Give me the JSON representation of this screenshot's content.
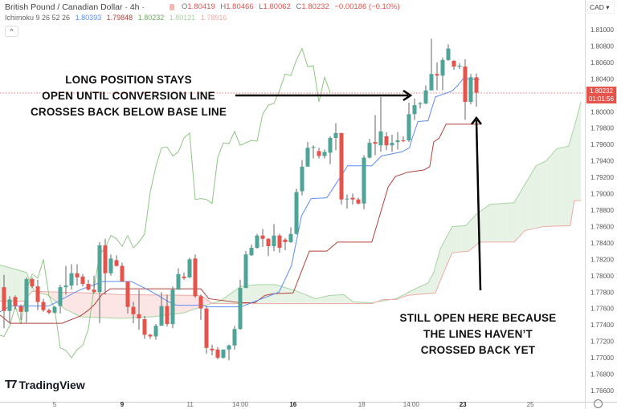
{
  "header": {
    "symbol": "British Pound / Canadian Dollar · 4h ·",
    "open_label": "O",
    "open": "1.80419",
    "high_label": "H",
    "high": "1.80466",
    "low_label": "L",
    "low": "1.80062",
    "close_label": "C",
    "close": "1.80232",
    "change": "−0.00186 (−0.10%)",
    "collapse_icon": "^"
  },
  "indicator": {
    "name": "Ichimoku 9 26 52 26",
    "conversion": "1.80393",
    "base": "1.79848",
    "lagging": "1.80232",
    "lead_a": "1.80121",
    "lead_b": "1.78916"
  },
  "currency": "CAD ▾",
  "price_axis": [
    "1.81000",
    "1.80800",
    "1.80600",
    "1.80400",
    "1.80000",
    "1.79800",
    "1.79600",
    "1.79400",
    "1.79200",
    "1.79000",
    "1.78800",
    "1.78600",
    "1.78400",
    "1.78200",
    "1.78000",
    "1.77800",
    "1.77600",
    "1.77400",
    "1.77200",
    "1.77000",
    "1.76800",
    "1.76600"
  ],
  "last_price": {
    "value": "1.80232",
    "countdown": "01:01:56"
  },
  "time_axis": [
    {
      "label": "5",
      "bar": 9,
      "bold": false
    },
    {
      "label": "9",
      "bar": 21,
      "bold": true
    },
    {
      "label": "11",
      "bar": 33.1,
      "bold": false
    },
    {
      "label": "14:00",
      "bar": 42,
      "bold": false
    },
    {
      "label": "16",
      "bar": 51.4,
      "bold": true
    },
    {
      "label": "18",
      "bar": 63.6,
      "bold": false
    },
    {
      "label": "14:00",
      "bar": 72.4,
      "bold": false
    },
    {
      "label": "23",
      "bar": 81.6,
      "bold": true
    },
    {
      "label": "25",
      "bar": 93.6,
      "bold": false
    }
  ],
  "annotations": {
    "left": [
      "LONG POSITION STAYS",
      "OPEN UNTIL CONVERSION LINE",
      "CROSSES BACK BELOW BASE LINE"
    ],
    "right": [
      "STILL OPEN HERE BECAUSE",
      "THE LINES HAVEN’T",
      "CROSSED BACK YET"
    ]
  },
  "logo": "TradingView",
  "colors": {
    "up": "#4ea597",
    "down": "#e5534b",
    "conversion": "#5b8cf5",
    "base": "#b5403a",
    "lagging": "#8fc585",
    "lead_a": "#a5d4a0",
    "lead_b": "#f0aaa6",
    "cloud_up": "#e6f2e4",
    "cloud_down": "#fbe4e3"
  },
  "chart_data": {
    "type": "candlestick",
    "ohlc_order": [
      "open",
      "high",
      "low",
      "close"
    ],
    "ylim": [
      1.7655,
      1.8115
    ],
    "candles": [
      [
        1.7786,
        1.7801,
        1.7736,
        1.7757
      ],
      [
        1.7757,
        1.7775,
        1.7743,
        1.7771
      ],
      [
        1.7774,
        1.7776,
        1.7759,
        1.7763
      ],
      [
        1.7763,
        1.7765,
        1.7746,
        1.7756
      ],
      [
        1.7756,
        1.7798,
        1.7743,
        1.7796
      ],
      [
        1.7796,
        1.7798,
        1.7785,
        1.7787
      ],
      [
        1.7787,
        1.7795,
        1.7758,
        1.7768
      ],
      [
        1.7768,
        1.7772,
        1.7756,
        1.7758
      ],
      [
        1.7758,
        1.776,
        1.7753,
        1.7755
      ],
      [
        1.7755,
        1.7763,
        1.7754,
        1.7762
      ],
      [
        1.7763,
        1.7789,
        1.7754,
        1.7786
      ],
      [
        1.7786,
        1.7812,
        1.7777,
        1.7788
      ],
      [
        1.7788,
        1.7814,
        1.7783,
        1.7803
      ],
      [
        1.7803,
        1.7814,
        1.7788,
        1.7798
      ],
      [
        1.7799,
        1.7802,
        1.7787,
        1.779
      ],
      [
        1.779,
        1.7795,
        1.7782,
        1.7783
      ],
      [
        1.7783,
        1.78,
        1.7778,
        1.778
      ],
      [
        1.778,
        1.7841,
        1.7742,
        1.7837
      ],
      [
        1.7837,
        1.7845,
        1.7777,
        1.7803
      ],
      [
        1.7803,
        1.7826,
        1.78,
        1.7821
      ],
      [
        1.7819,
        1.7825,
        1.7811,
        1.7812
      ],
      [
        1.7812,
        1.7816,
        1.7793,
        1.7793
      ],
      [
        1.7793,
        1.7793,
        1.7754,
        1.7762
      ],
      [
        1.7762,
        1.7768,
        1.7742,
        1.7753
      ],
      [
        1.7753,
        1.7783,
        1.7734,
        1.7748
      ],
      [
        1.7747,
        1.7751,
        1.7723,
        1.7728
      ],
      [
        1.7728,
        1.7729,
        1.7723,
        1.7726
      ],
      [
        1.7726,
        1.7741,
        1.7722,
        1.7739
      ],
      [
        1.7739,
        1.778,
        1.7739,
        1.7763
      ],
      [
        1.7763,
        1.7777,
        1.7738,
        1.7741
      ],
      [
        1.7741,
        1.7787,
        1.7736,
        1.7783
      ],
      [
        1.7783,
        1.7809,
        1.7783,
        1.7802
      ],
      [
        1.7799,
        1.7804,
        1.7795,
        1.7797
      ],
      [
        1.7798,
        1.7822,
        1.7797,
        1.782
      ],
      [
        1.7821,
        1.7826,
        1.7773,
        1.7775
      ],
      [
        1.7775,
        1.7777,
        1.7746,
        1.776
      ],
      [
        1.776,
        1.7763,
        1.7705,
        1.7712
      ],
      [
        1.7711,
        1.7716,
        1.7703,
        1.7709
      ],
      [
        1.771,
        1.7713,
        1.7698,
        1.77
      ],
      [
        1.77,
        1.771,
        1.7699,
        1.771
      ],
      [
        1.771,
        1.7716,
        1.7697,
        1.7715
      ],
      [
        1.7715,
        1.7739,
        1.771,
        1.7735
      ],
      [
        1.7735,
        1.7795,
        1.7734,
        1.7785
      ],
      [
        1.7785,
        1.783,
        1.7785,
        1.7826
      ],
      [
        1.7825,
        1.7838,
        1.7824,
        1.7834
      ],
      [
        1.7834,
        1.7851,
        1.7833,
        1.7849
      ],
      [
        1.7849,
        1.7857,
        1.7835,
        1.7845
      ],
      [
        1.7845,
        1.7846,
        1.7824,
        1.7836
      ],
      [
        1.7836,
        1.7863,
        1.783,
        1.7849
      ],
      [
        1.7849,
        1.7851,
        1.7828,
        1.7834
      ],
      [
        1.7844,
        1.7846,
        1.7831,
        1.7841
      ],
      [
        1.7841,
        1.7859,
        1.784,
        1.7851
      ],
      [
        1.7851,
        1.7906,
        1.785,
        1.7902
      ],
      [
        1.7903,
        1.7941,
        1.7898,
        1.7933
      ],
      [
        1.7933,
        1.7963,
        1.7933,
        1.7956
      ],
      [
        1.7956,
        1.7959,
        1.7943,
        1.7957
      ],
      [
        1.7952,
        1.7956,
        1.7943,
        1.7946
      ],
      [
        1.7946,
        1.7954,
        1.7943,
        1.7951
      ],
      [
        1.795,
        1.797,
        1.7936,
        1.7968
      ],
      [
        1.7968,
        1.7986,
        1.7953,
        1.7974
      ],
      [
        1.7974,
        1.7974,
        1.7887,
        1.7893
      ],
      [
        1.7893,
        1.7899,
        1.7882,
        1.7894
      ],
      [
        1.7895,
        1.79,
        1.7887,
        1.7893
      ],
      [
        1.7893,
        1.7895,
        1.7887,
        1.7888
      ],
      [
        1.7888,
        1.7947,
        1.7881,
        1.7944
      ],
      [
        1.7944,
        1.7967,
        1.7943,
        1.7962
      ],
      [
        1.7963,
        1.7996,
        1.7947,
        1.7961
      ],
      [
        1.7959,
        1.8018,
        1.7951,
        1.7976
      ],
      [
        1.797,
        1.7975,
        1.7953,
        1.7959
      ],
      [
        1.7959,
        1.7972,
        1.7951,
        1.7962
      ],
      [
        1.7963,
        1.7975,
        1.7954,
        1.7965
      ],
      [
        1.7965,
        1.797,
        1.7963,
        1.7964
      ],
      [
        1.7965,
        1.8011,
        1.7963,
        1.7997
      ],
      [
        1.7997,
        1.8016,
        1.799,
        1.8008
      ],
      [
        1.8009,
        1.8012,
        1.8004,
        1.801
      ],
      [
        1.801,
        1.8032,
        1.8009,
        1.8026
      ],
      [
        1.8026,
        1.8089,
        1.8026,
        1.8046
      ],
      [
        1.8046,
        1.806,
        1.8026,
        1.8044
      ],
      [
        1.8044,
        1.8066,
        1.8026,
        1.8063
      ],
      [
        1.8063,
        1.8082,
        1.8062,
        1.8077
      ],
      [
        1.8062,
        1.8063,
        1.8051,
        1.8055
      ],
      [
        1.8055,
        1.8059,
        1.8052,
        1.8056
      ],
      [
        1.8055,
        1.8064,
        1.799,
        1.8012
      ],
      [
        1.8012,
        1.8046,
        1.8009,
        1.8042
      ],
      [
        1.80419,
        1.80466,
        1.80062,
        1.80232
      ]
    ],
    "lagging_shift": 26,
    "conversion_line": [
      [
        -0.7,
        1.7756
      ],
      [
        1.1,
        1.7763
      ],
      [
        7.9,
        1.7763
      ],
      [
        10,
        1.777
      ],
      [
        12.4,
        1.7779
      ],
      [
        13.6,
        1.7783
      ],
      [
        17.6,
        1.7793
      ],
      [
        22.6,
        1.7793
      ],
      [
        25,
        1.7785
      ],
      [
        26.9,
        1.7778
      ],
      [
        29.3,
        1.7768
      ],
      [
        30.7,
        1.7764
      ],
      [
        35.4,
        1.7764
      ],
      [
        36.1,
        1.7762
      ],
      [
        42.1,
        1.7762
      ],
      [
        48.9,
        1.778
      ],
      [
        51.1,
        1.7812
      ],
      [
        52.9,
        1.7873
      ],
      [
        54.6,
        1.7894
      ],
      [
        57.4,
        1.7895
      ],
      [
        59.3,
        1.7915
      ],
      [
        61.1,
        1.7934
      ],
      [
        65.4,
        1.7934
      ],
      [
        67.1,
        1.7946
      ],
      [
        70.7,
        1.7951
      ],
      [
        72.1,
        1.7956
      ],
      [
        72.6,
        1.7968
      ],
      [
        73.6,
        1.7988
      ],
      [
        75.4,
        1.7989
      ],
      [
        76.7,
        1.8018
      ],
      [
        79.6,
        1.8025
      ],
      [
        80.7,
        1.8032
      ],
      [
        81.6,
        1.804
      ],
      [
        84.6,
        1.80393
      ]
    ],
    "base_line": [
      [
        -0.7,
        1.7752
      ],
      [
        1.1,
        1.7742
      ],
      [
        10.3,
        1.7742
      ],
      [
        13.6,
        1.7751
      ],
      [
        15,
        1.7758
      ],
      [
        16.1,
        1.7765
      ],
      [
        17.4,
        1.7777
      ],
      [
        18.9,
        1.7784
      ],
      [
        35,
        1.7784
      ],
      [
        36.4,
        1.7772
      ],
      [
        42.1,
        1.7767
      ],
      [
        44.6,
        1.7767
      ],
      [
        46.4,
        1.7776
      ],
      [
        47.9,
        1.7778
      ],
      [
        51.4,
        1.7779
      ],
      [
        54.3,
        1.783
      ],
      [
        57.4,
        1.783
      ],
      [
        59.3,
        1.7841
      ],
      [
        65.4,
        1.7841
      ],
      [
        68.3,
        1.7908
      ],
      [
        69.6,
        1.7921
      ],
      [
        71.7,
        1.7926
      ],
      [
        74.7,
        1.7929
      ],
      [
        75.7,
        1.7933
      ],
      [
        76.4,
        1.7963
      ],
      [
        77.4,
        1.7968
      ],
      [
        78.6,
        1.79848
      ],
      [
        84.6,
        1.79848
      ]
    ],
    "leading_span_a": [
      [
        -0.7,
        1.7813
      ],
      [
        4,
        1.7804
      ],
      [
        5.4,
        1.7781
      ],
      [
        7.9,
        1.7776
      ],
      [
        10.7,
        1.776
      ],
      [
        13.6,
        1.775
      ],
      [
        20.7,
        1.7748
      ],
      [
        26.4,
        1.775
      ],
      [
        32.1,
        1.7755
      ],
      [
        35,
        1.7762
      ],
      [
        38.6,
        1.777
      ],
      [
        42.1,
        1.7787
      ],
      [
        45,
        1.7789
      ],
      [
        48.3,
        1.7789
      ],
      [
        51.7,
        1.7782
      ],
      [
        53.6,
        1.7777
      ],
      [
        55.4,
        1.7772
      ],
      [
        57.9,
        1.7776
      ],
      [
        60.4,
        1.7777
      ],
      [
        62.1,
        1.7768
      ],
      [
        65.4,
        1.7767
      ],
      [
        69.7,
        1.7772
      ],
      [
        73.1,
        1.7784
      ],
      [
        75.4,
        1.7791
      ],
      [
        76.4,
        1.7804
      ],
      [
        77.6,
        1.7833
      ],
      [
        79.7,
        1.786
      ],
      [
        82.1,
        1.7861
      ],
      [
        84,
        1.7875
      ],
      [
        86.4,
        1.7887
      ],
      [
        90.7,
        1.7889
      ],
      [
        92.6,
        1.7911
      ],
      [
        94.6,
        1.7934
      ],
      [
        96.4,
        1.794
      ],
      [
        98.3,
        1.7955
      ],
      [
        100.4,
        1.7958
      ],
      [
        101.7,
        1.7989
      ],
      [
        102.6,
        1.80121
      ]
    ],
    "leading_span_b": [
      [
        -0.7,
        1.7769
      ],
      [
        3.6,
        1.7769
      ],
      [
        5,
        1.7781
      ],
      [
        15,
        1.7779
      ],
      [
        20.7,
        1.7777
      ],
      [
        35,
        1.7776
      ],
      [
        37.1,
        1.7766
      ],
      [
        65.4,
        1.7766
      ],
      [
        67.4,
        1.7771
      ],
      [
        69.7,
        1.7771
      ],
      [
        71.7,
        1.7776
      ],
      [
        76.7,
        1.7779
      ],
      [
        78.3,
        1.7806
      ],
      [
        79.7,
        1.7828
      ],
      [
        82.6,
        1.783
      ],
      [
        84.6,
        1.7841
      ],
      [
        90.7,
        1.7841
      ],
      [
        92.6,
        1.7855
      ],
      [
        96,
        1.786
      ],
      [
        100.7,
        1.7861
      ],
      [
        101.4,
        1.78916
      ],
      [
        102.6,
        1.78916
      ]
    ]
  }
}
